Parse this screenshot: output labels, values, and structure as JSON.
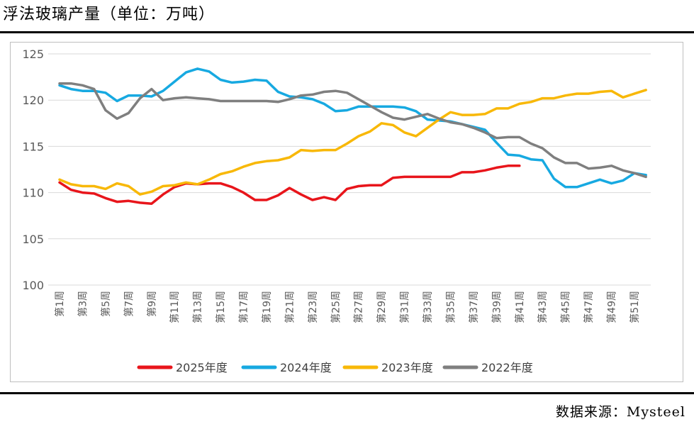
{
  "title": "浮法玻璃产量（单位：万吨）",
  "source": "数据来源：Mysteel",
  "chart_data": {
    "type": "line",
    "title": "浮法玻璃产量（单位：万吨）",
    "ylim": [
      100,
      125
    ],
    "yticks": [
      100,
      105,
      110,
      115,
      120,
      125
    ],
    "x_tick_labels": [
      "第1周",
      "第3周",
      "第5周",
      "第7周",
      "第9周",
      "第11周",
      "第13周",
      "第15周",
      "第17周",
      "第19周",
      "第21周",
      "第23周",
      "第25周",
      "第27周",
      "第29周",
      "第31周",
      "第33周",
      "第35周",
      "第37周",
      "第39周",
      "第41周",
      "第43周",
      "第45周",
      "第47周",
      "第49周",
      "第51周"
    ],
    "legend_position": "bottom",
    "series": [
      {
        "name": "2025年度",
        "color": "#e8151b",
        "values": [
          111.1,
          110.3,
          110.0,
          109.9,
          109.4,
          109.0,
          109.1,
          108.9,
          108.8,
          109.8,
          110.6,
          111.0,
          110.9,
          111.0,
          111.0,
          110.6,
          110.0,
          109.2,
          109.2,
          109.7,
          110.5,
          109.8,
          109.2,
          109.5,
          109.2,
          110.4,
          110.7,
          110.8,
          110.8,
          111.6,
          111.7,
          111.7,
          111.7,
          111.7,
          111.7,
          112.2,
          112.2,
          112.4,
          112.7,
          112.9,
          112.9
        ]
      },
      {
        "name": "2024年度",
        "color": "#17a9e1",
        "values": [
          121.6,
          121.2,
          121.0,
          121.0,
          120.8,
          119.9,
          120.5,
          120.5,
          120.4,
          121.0,
          122.0,
          123.0,
          123.4,
          123.1,
          122.2,
          121.9,
          122.0,
          122.2,
          122.1,
          120.9,
          120.4,
          120.3,
          120.1,
          119.6,
          118.8,
          118.9,
          119.3,
          119.3,
          119.3,
          119.3,
          119.2,
          118.8,
          117.9,
          117.8,
          117.7,
          117.4,
          117.1,
          116.8,
          115.4,
          114.1,
          114.0,
          113.6,
          113.5,
          111.5,
          110.6,
          110.6,
          111.0,
          111.4,
          111.0,
          111.3,
          112.1,
          111.9
        ]
      },
      {
        "name": "2023年度",
        "color": "#f8b808",
        "values": [
          111.4,
          110.9,
          110.7,
          110.7,
          110.4,
          111.0,
          110.7,
          109.8,
          110.1,
          110.7,
          110.8,
          111.1,
          110.9,
          111.4,
          112.0,
          112.3,
          112.8,
          113.2,
          113.4,
          113.5,
          113.8,
          114.6,
          114.5,
          114.6,
          114.6,
          115.3,
          116.1,
          116.6,
          117.5,
          117.3,
          116.5,
          116.1,
          117.0,
          117.9,
          118.7,
          118.4,
          118.4,
          118.5,
          119.1,
          119.1,
          119.6,
          119.8,
          120.2,
          120.2,
          120.5,
          120.7,
          120.7,
          120.9,
          121.0,
          120.3,
          120.7,
          121.1
        ]
      },
      {
        "name": "2022年度",
        "color": "#7f7f7f",
        "values": [
          121.8,
          121.8,
          121.6,
          121.2,
          118.9,
          118.0,
          118.6,
          120.2,
          121.2,
          120.0,
          120.2,
          120.3,
          120.2,
          120.1,
          119.9,
          119.9,
          119.9,
          119.9,
          119.9,
          119.8,
          120.1,
          120.5,
          120.6,
          120.9,
          121.0,
          120.8,
          120.1,
          119.4,
          118.7,
          118.1,
          117.9,
          118.2,
          118.5,
          118.0,
          117.6,
          117.4,
          117.0,
          116.5,
          115.9,
          116.0,
          116.0,
          115.3,
          114.8,
          113.8,
          113.2,
          113.2,
          112.6,
          112.7,
          112.9,
          112.4,
          112.1,
          111.7
        ]
      }
    ]
  }
}
